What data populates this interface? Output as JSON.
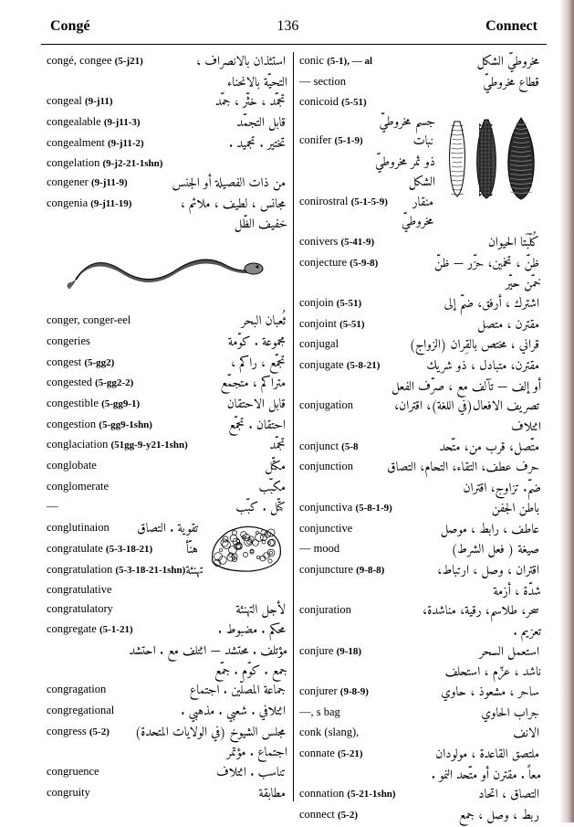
{
  "header": {
    "left": "Congé",
    "page": "136",
    "right": "Connect"
  },
  "left": [
    {
      "hw": "congé, congee",
      "pron": "(5-j21)",
      "ar": "استئذان بالانصراف ،"
    },
    {
      "ar_only": "التحيّة بالانحناء"
    },
    {
      "hw": "congeal",
      "pron": "(9-j11)",
      "ar": "تجمّد ، خثّر ، جمّد"
    },
    {
      "hw": "congealable",
      "pron": "(9-j11-3)",
      "ar": "قابل التجمّد"
    },
    {
      "hw": "congealment",
      "pron": "(9-j11-2)",
      "ar": "تختير . تجميد ."
    },
    {
      "hw": "congelation",
      "pron": "(9-j2-21-1shn)",
      "ar": ""
    },
    {
      "hw": "congener",
      "pron": "(9-j11-9)",
      "ar": "من ذات الفصيلة أو الجنس"
    },
    {
      "hw": "congenia",
      "pron": "(9-j11-19)",
      "ar": "مجانس ، لطيف ، ملائم ،"
    },
    {
      "ar_only": "خفيف الظّل"
    },
    {
      "illus": "eel"
    },
    {
      "hw": "conger, conger-eel",
      "pron": "",
      "ar": "ثُعبان البحر"
    },
    {
      "hw": "congeries",
      "pron": "",
      "ar": "مجموعة . كوّمة"
    },
    {
      "hw": "congest",
      "pron": "(5-gg2)",
      "ar": "تجمّع ، راكم ،"
    },
    {
      "hw": "congested",
      "pron": "(5-gg2-2)",
      "ar": "متراكم ، متجمّع"
    },
    {
      "hw": "congestible",
      "pron": "(5-gg9-1)",
      "ar": "قابل الاحتقان"
    },
    {
      "hw": "congestion",
      "pron": "(5-gg9-1shn)",
      "ar": "احتقان . تجمّع"
    },
    {
      "hw": "conglaciation",
      "pron": "(51gg-9-y21-1shn)",
      "ar": "تجمّد"
    },
    {
      "hw": "conglobate",
      "pron": "",
      "ar": "مكتّل"
    },
    {
      "hw": "conglomerate",
      "pron": "",
      "ar": "مكبّب"
    },
    {
      "hw": "—",
      "pron": "",
      "ar": "كتّل . كبّب"
    },
    {
      "illus": "rock"
    },
    {
      "hw": "conglutinaion",
      "pron": "",
      "ar": "تقوية . التصاق"
    },
    {
      "hw": "congratulate",
      "pron": "(5-3-18-21)",
      "ar": "هنّأ"
    },
    {
      "hw": "congratulation",
      "pron": "(5-3-18-21-1shn)",
      "ar": "تهنئة"
    },
    {
      "hw": "congratulative",
      "pron": "",
      "ar": ""
    },
    {
      "hw": "congratulatory",
      "pron": "",
      "ar": "لأجل التهنئة"
    },
    {
      "hw": "congregate",
      "pron": "(5-1-21)",
      "ar": "محكم . مضبوط ."
    },
    {
      "ar_only": "مؤتلف . محتشد — ائتلف مع . احتشد"
    },
    {
      "ar_only": "جمع . كوّم . جمّع"
    },
    {
      "hw": "congragation",
      "pron": "",
      "ar": "جماعة المصلّين . اجتماع"
    },
    {
      "hw": "congregational",
      "pron": "",
      "ar": "ائتلافي . شعبي . مذهبي ."
    },
    {
      "hw": "congress",
      "pron": "(5-2)",
      "ar": "مجلس الشيوخ (في الولايات المتحدة)"
    },
    {
      "ar_only": "اجتماع . مؤتمر"
    },
    {
      "hw": "congruence",
      "pron": "",
      "ar": "تناسب . ائتلاف"
    },
    {
      "hw": "congruity",
      "pron": "",
      "ar": "مطابقة"
    }
  ],
  "right": [
    {
      "hw": "conic",
      "pron": "(5-1), — al",
      "ar": "مخروطيّ الشكل"
    },
    {
      "hw": "— section",
      "pron": "",
      "ar": "قطاع مخروطيّ"
    },
    {
      "hw": "conicoid",
      "pron": "(5-51)",
      "ar": ""
    },
    {
      "illus": "cones"
    },
    {
      "ar_only": "جسم مخروطيّ"
    },
    {
      "hw": "conifer",
      "pron": "(5-1-9)",
      "ar": "نبات"
    },
    {
      "ar_only": "ذو ثمر مخروطيّ"
    },
    {
      "ar_only": "الشكل"
    },
    {
      "hw": "conirostral",
      "pron": "(5-1-5-9)",
      "ar": "منقار مخروطيّ"
    },
    {
      "hw": "conivers",
      "pron": "(5-41-9)",
      "ar": "كُلّبَتا الحيوان"
    },
    {
      "hw": "conjecture",
      "pron": "(5-9-8)",
      "ar": "ظنّ ، تخمين، حزّر — ظنّ"
    },
    {
      "ar_only": "خمّن حيّر"
    },
    {
      "hw": "conjoin",
      "pron": "(5-51)",
      "ar": "اشترك ، أرفق، ضمّ إلى"
    },
    {
      "hw": "conjoint",
      "pron": "(5-51)",
      "ar": "مقترن ، متصل"
    },
    {
      "hw": "conjugal",
      "pron": "",
      "ar": "قراني ، مختص بالقِران (الزواج)"
    },
    {
      "hw": "conjugate",
      "pron": "(5-8-21)",
      "ar": "مقترن، متبادل ، ذو شريك"
    },
    {
      "ar_only": "أو إلف — تآلف مع ، صرّف الفعل"
    },
    {
      "hw": "conjugation",
      "pron": "",
      "ar": "تصريف الافعال(في اللغة)، اقتران،"
    },
    {
      "ar_only": "ائتلاف"
    },
    {
      "hw": "conjunct",
      "pron": "(5-8",
      "ar": "متّصل، قرب من، متّحد"
    },
    {
      "hw": "conjunction",
      "pron": "",
      "ar": "حرف عطف، التقاء، التحام، التصاق"
    },
    {
      "ar_only": "ضمّ. تزاوج، اقتران"
    },
    {
      "hw": "conjunctiva",
      "pron": "(5-8-1-9)",
      "ar": "باطن الجفن"
    },
    {
      "hw": "conjunctive",
      "pron": "",
      "ar": "عاطف ، رابط ، موصل"
    },
    {
      "hw": "— mood",
      "pron": "",
      "ar": "صيغة ( فعل الشرط)"
    },
    {
      "hw": "conjuncture",
      "pron": "(9-8-8)",
      "ar": "اقتران ، وصل ، ارتباط،"
    },
    {
      "ar_only": "شدّة ، أزمة"
    },
    {
      "hw": "conjuration",
      "pron": "",
      "ar": "سحر، طلاسم، رقية، مناشدة،"
    },
    {
      "ar_only": "تعزيم ."
    },
    {
      "hw": "conjure",
      "pron": "(9-18)",
      "ar": "استعمل السحر"
    },
    {
      "ar_only": "ناشد ، عزّم ، استحلف"
    },
    {
      "hw": "conjurer",
      "pron": "(9-8-9)",
      "ar": "ساحر ، مشعوذ ، حاوي"
    },
    {
      "hw": "—, s bag",
      "pron": "",
      "ar": "جراب الحاوي"
    },
    {
      "hw": "conk (slang),",
      "pron": "",
      "ar": "الانف"
    },
    {
      "hw": "connate",
      "pron": "(5-21)",
      "ar": "ملتصق القاعدة ، مولودان"
    },
    {
      "ar_only": "معاً . مقترن أو متّحد النمو ."
    },
    {
      "hw": "connation",
      "pron": "(5-21-1shn)",
      "ar": "التصاق ، اتحاد"
    },
    {
      "hw": "connect",
      "pron": "(5-2)",
      "ar": "ربط ، وصل ، جمع"
    }
  ]
}
